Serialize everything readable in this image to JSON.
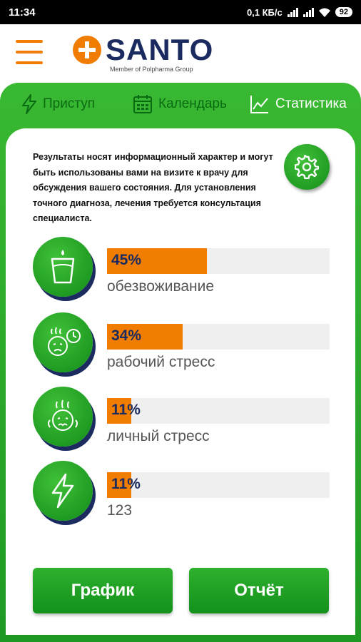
{
  "status_bar": {
    "time": "11:34",
    "net_speed": "0,1 КБ/с",
    "battery": "92"
  },
  "header": {
    "logo_text": "SANTO",
    "logo_sub": "Member of Polpharma Group"
  },
  "tabs": [
    {
      "label": "Приступ",
      "icon": "lightning-icon",
      "active": false
    },
    {
      "label": "Календарь",
      "icon": "calendar-icon",
      "active": false
    },
    {
      "label": "Статистика",
      "icon": "chart-line-icon",
      "active": true
    }
  ],
  "info": {
    "text": "Результаты носят информационный характер и могут быть использованы вами на визите к врачу для обсуждения вашего состояния. Для установления точного диагноза, лечения требуется консультация специалиста."
  },
  "stats": [
    {
      "percent": 45,
      "percent_label": "45%",
      "label": "обезвоживание",
      "icon": "water-glass-icon"
    },
    {
      "percent": 34,
      "percent_label": "34%",
      "label": "рабочий стресс",
      "icon": "work-stress-icon"
    },
    {
      "percent": 11,
      "percent_label": "11%",
      "label": "личный стресс",
      "icon": "personal-stress-icon"
    },
    {
      "percent": 11,
      "percent_label": "11%",
      "label": "123",
      "icon": "lightning-icon"
    }
  ],
  "buttons": {
    "chart": "График",
    "report": "Отчёт"
  },
  "colors": {
    "green": "#1e9a23",
    "orange": "#f07d00",
    "navy": "#1b2b5f"
  }
}
